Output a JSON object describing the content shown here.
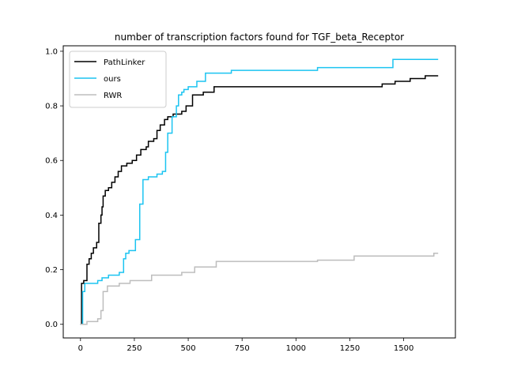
{
  "chart_data": {
    "type": "line",
    "title": "number of transcription factors found for TGF_beta_Receptor",
    "xlabel": "",
    "ylabel": "",
    "xlim": [
      -80,
      1740
    ],
    "ylim": [
      -0.05,
      1.02
    ],
    "xticks": [
      0,
      250,
      500,
      750,
      1000,
      1250,
      1500
    ],
    "xtick_labels": [
      "0",
      "250",
      "500",
      "750",
      "1000",
      "1250",
      "1500"
    ],
    "yticks": [
      0.0,
      0.2,
      0.4,
      0.6,
      0.8,
      1.0
    ],
    "ytick_labels": [
      "0.0",
      "0.2",
      "0.4",
      "0.6",
      "0.8",
      "1.0"
    ],
    "grid": false,
    "legend_position": "top-left",
    "series": [
      {
        "name": "PathLinker",
        "color": "#000000",
        "step": true,
        "x": [
          0,
          5,
          15,
          30,
          40,
          50,
          60,
          75,
          85,
          95,
          100,
          105,
          115,
          130,
          145,
          160,
          175,
          190,
          215,
          240,
          260,
          280,
          305,
          315,
          340,
          355,
          370,
          390,
          405,
          430,
          470,
          490,
          520,
          570,
          620,
          1300,
          1400,
          1460,
          1530,
          1600,
          1660
        ],
        "y": [
          0.0,
          0.15,
          0.16,
          0.22,
          0.24,
          0.26,
          0.28,
          0.3,
          0.37,
          0.4,
          0.43,
          0.47,
          0.49,
          0.5,
          0.52,
          0.54,
          0.56,
          0.58,
          0.59,
          0.6,
          0.62,
          0.64,
          0.65,
          0.67,
          0.68,
          0.71,
          0.73,
          0.75,
          0.76,
          0.77,
          0.78,
          0.8,
          0.84,
          0.85,
          0.87,
          0.87,
          0.88,
          0.89,
          0.9,
          0.91,
          0.91
        ]
      },
      {
        "name": "ours",
        "color": "#1bc4f1",
        "step": true,
        "x": [
          0,
          10,
          20,
          80,
          100,
          130,
          180,
          200,
          210,
          225,
          255,
          275,
          290,
          315,
          355,
          380,
          395,
          405,
          425,
          445,
          455,
          470,
          480,
          500,
          540,
          580,
          700,
          1100,
          1450,
          1660
        ],
        "y": [
          0.0,
          0.12,
          0.15,
          0.16,
          0.17,
          0.18,
          0.19,
          0.24,
          0.26,
          0.27,
          0.31,
          0.44,
          0.53,
          0.54,
          0.55,
          0.56,
          0.63,
          0.7,
          0.76,
          0.8,
          0.84,
          0.85,
          0.86,
          0.87,
          0.89,
          0.92,
          0.93,
          0.94,
          0.97,
          0.97
        ]
      },
      {
        "name": "RWR",
        "color": "#bdbdbd",
        "step": true,
        "x": [
          0,
          30,
          80,
          95,
          105,
          125,
          180,
          230,
          330,
          470,
          530,
          630,
          1100,
          1270,
          1640,
          1660
        ],
        "y": [
          0.0,
          0.01,
          0.02,
          0.05,
          0.12,
          0.14,
          0.15,
          0.16,
          0.18,
          0.19,
          0.21,
          0.23,
          0.235,
          0.25,
          0.26,
          0.26
        ]
      }
    ]
  }
}
